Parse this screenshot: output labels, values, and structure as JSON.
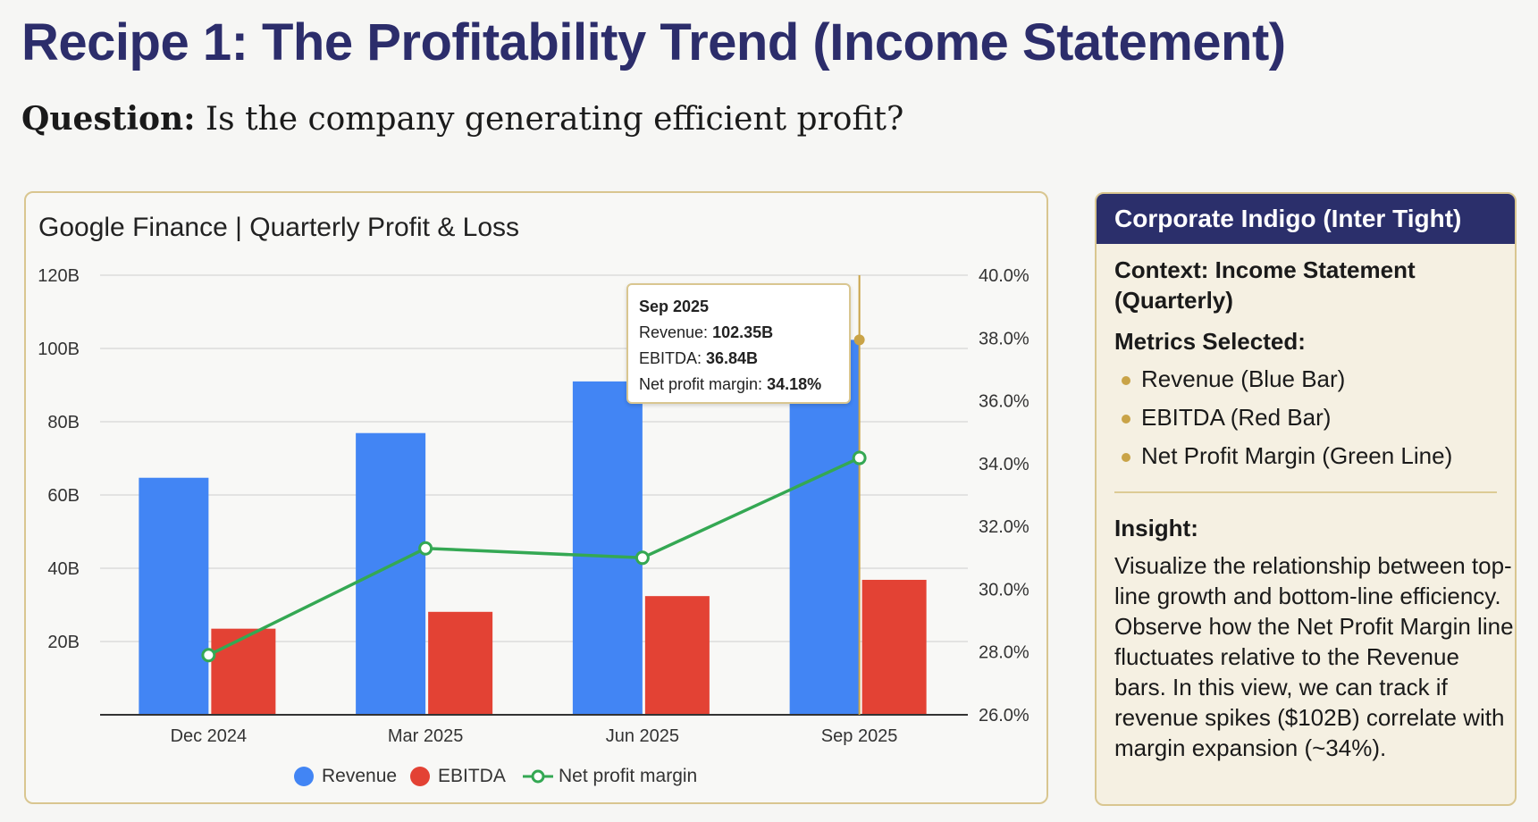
{
  "title": "Recipe 1: The Profitability Trend (Income Statement)",
  "question": {
    "label": "Question:",
    "text": " Is the company generating efficient profit?"
  },
  "chart_data": {
    "type": "bar",
    "title": "Google Finance | Quarterly Profit & Loss",
    "categories": [
      "Dec 2024",
      "Mar 2025",
      "Jun 2025",
      "Sep 2025"
    ],
    "series": [
      {
        "name": "Revenue",
        "type": "bar",
        "axis": "left",
        "color": "#4285f4",
        "values": [
          64.7,
          76.9,
          91.0,
          102.35
        ]
      },
      {
        "name": "EBITDA",
        "type": "bar",
        "axis": "left",
        "color": "#e34234",
        "values": [
          23.5,
          28.1,
          32.4,
          36.84
        ]
      },
      {
        "name": "Net profit margin",
        "type": "line",
        "axis": "right",
        "color": "#34a853",
        "values": [
          27.9,
          31.3,
          31.0,
          34.18
        ]
      }
    ],
    "y_left": {
      "min": 0,
      "max": 120,
      "ticks": [
        "20B",
        "40B",
        "60B",
        "80B",
        "100B",
        "120B"
      ],
      "tick_values": [
        20,
        40,
        60,
        80,
        100,
        120
      ]
    },
    "y_right": {
      "min": 26,
      "max": 40,
      "ticks": [
        "26.0%",
        "28.0%",
        "30.0%",
        "32.0%",
        "34.0%",
        "36.0%",
        "38.0%",
        "40.0%"
      ],
      "tick_values": [
        26,
        28,
        30,
        32,
        34,
        36,
        38,
        40
      ]
    },
    "grid": true,
    "legend": "bottom",
    "tooltip": {
      "title": "Sep 2025",
      "rows": [
        {
          "label": "Revenue: ",
          "value": "102.35B"
        },
        {
          "label": "EBITDA: ",
          "value": "36.84B"
        },
        {
          "label": "Net profit margin: ",
          "value": "34.18%"
        }
      ]
    },
    "highlight_color": "#c9a347"
  },
  "side": {
    "header": "Corporate Indigo (Inter Tight)",
    "context": "Context: Income Statement (Quarterly)",
    "metrics_heading": "Metrics Selected:",
    "metrics": [
      "Revenue (Blue Bar)",
      "EBITDA (Red Bar)",
      "Net Profit Margin (Green Line)"
    ],
    "insight_heading": "Insight:",
    "insight": "Visualize the relationship between top-line growth and bottom-line efficiency. Observe how the Net Profit Margin line fluctuates relative to the Revenue bars. In this view, we can track if revenue spikes ($102B) correlate with margin expansion (~34%)."
  }
}
